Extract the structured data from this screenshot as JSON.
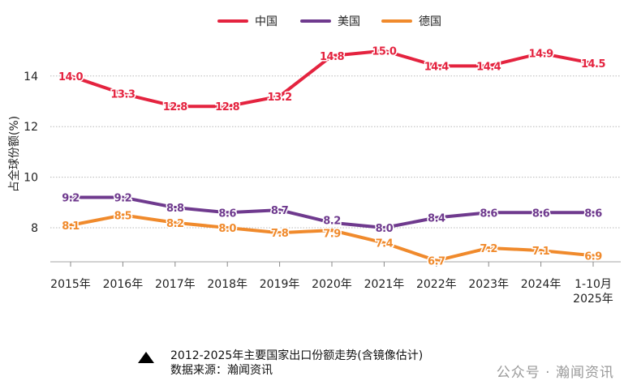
{
  "chart_data": {
    "type": "line",
    "categories": [
      "2015年",
      "2016年",
      "2017年",
      "2018年",
      "2019年",
      "2020年",
      "2021年",
      "2022年",
      "2023年",
      "2024年",
      "1-10月\n2025年"
    ],
    "series": [
      {
        "name": "中国",
        "color": "#e4233f",
        "values": [
          14.0,
          13.3,
          12.8,
          12.8,
          13.2,
          14.8,
          15.0,
          14.4,
          14.4,
          14.9,
          14.5
        ]
      },
      {
        "name": "美国",
        "color": "#6f3a8e",
        "values": [
          9.2,
          9.2,
          8.8,
          8.6,
          8.7,
          8.2,
          8.0,
          8.4,
          8.6,
          8.6,
          8.6
        ]
      },
      {
        "name": "德国",
        "color": "#f08a2c",
        "values": [
          8.1,
          8.5,
          8.2,
          8.0,
          7.8,
          7.9,
          7.4,
          6.7,
          7.2,
          7.1,
          6.9
        ]
      }
    ],
    "ylabel": "占全球份额(%)",
    "xlabel": "",
    "yticks": [
      8,
      10,
      12,
      14
    ],
    "ylim": [
      6.3,
      15.3
    ],
    "grid": "horizontal dotted",
    "legend": "top-center",
    "data_labels": true
  },
  "caption": {
    "title": "2012-2025年主要国家出口份额走势(含镜像估计)",
    "source": "数据来源：瀚闻资讯"
  },
  "watermark": "公众号 · 瀚闻资讯"
}
